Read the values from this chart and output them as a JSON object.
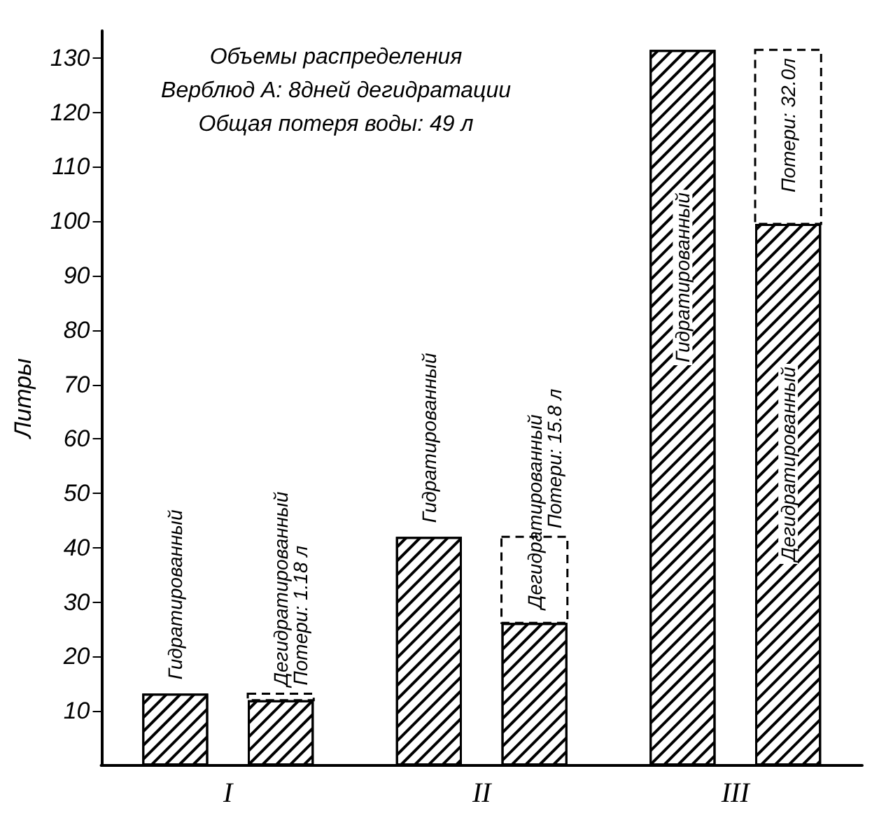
{
  "chart_data": {
    "type": "bar",
    "title": "Объемы распределения",
    "subtitle": "Верблюд А: 8дней дегидратации",
    "annotations": [
      "Общая потеря воды: 49 л"
    ],
    "ylabel": "Литры",
    "categories": [
      "I",
      "II",
      "III"
    ],
    "series": [
      {
        "name": "Гидратированный",
        "color": "#ffffff",
        "values": [
          13.2,
          42,
          131.5
        ]
      },
      {
        "name": "Дегидратированный",
        "color": "#ffffff",
        "values": [
          12.0,
          26.2,
          99.5
        ]
      },
      {
        "color": "#000000",
        "base": [
          12.0,
          26.2,
          99.5
        ],
        "values": [
          1.18,
          15.8,
          32.0
        ],
        "value_labels": [
          "Потери: 1.18 л",
          "Потери: 15.8 л",
          "Потери: 32.0л"
        ],
        "line_style": "dashed"
      }
    ],
    "ylim": [
      0,
      135
    ],
    "yticks": [
      10,
      20,
      30,
      40,
      50,
      60,
      70,
      80,
      90,
      100,
      110,
      120,
      130
    ]
  }
}
